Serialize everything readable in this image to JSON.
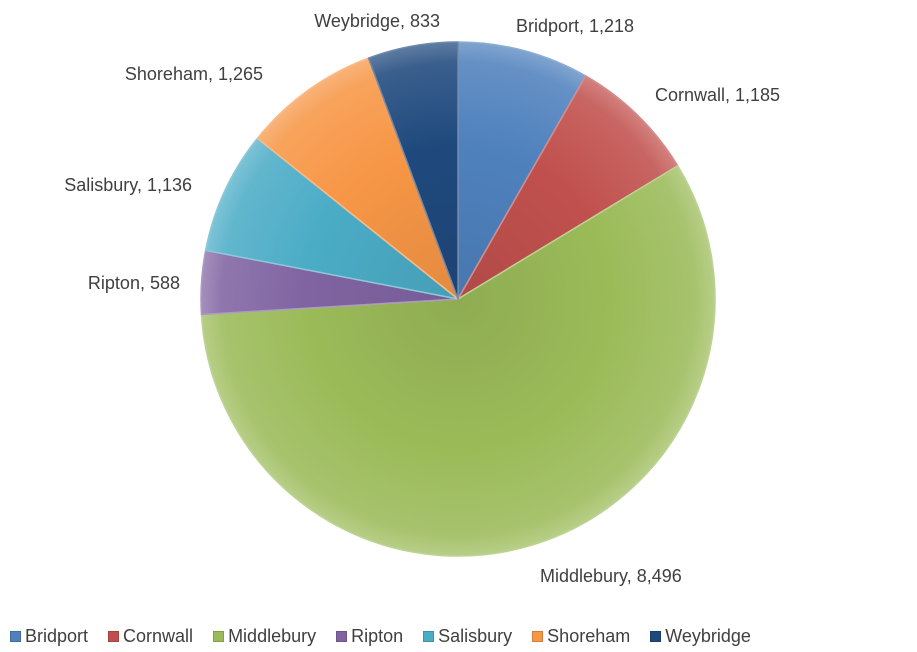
{
  "chart_data": {
    "type": "pie",
    "title": "",
    "categories": [
      "Bridport",
      "Cornwall",
      "Middlebury",
      "Ripton",
      "Salisbury",
      "Shoreham",
      "Weybridge"
    ],
    "values": [
      1218,
      1185,
      8496,
      588,
      1136,
      1265,
      833
    ],
    "value_labels": [
      "1,218",
      "1,185",
      "8,496",
      "588",
      "1,136",
      "1,265",
      "833"
    ],
    "colors": [
      "#4F81BD",
      "#C0504D",
      "#9BBB59",
      "#8064A2",
      "#4BACC6",
      "#F79646",
      "#1F497D"
    ],
    "data_labels": [
      "Bridport, 1,218",
      "Cornwall, 1,185",
      "Middlebury, 8,496",
      "Ripton, 588",
      "Salisbury, 1,136",
      "Shoreham, 1,265",
      "Weybridge, 833"
    ],
    "legend": {
      "placement": "bottom",
      "entries": [
        "Bridport",
        "Cornwall",
        "Middlebury",
        "Ripton",
        "Salisbury",
        "Shoreham",
        "Weybridge"
      ]
    },
    "start_angle": "12 o'clock",
    "direction": "clockwise"
  }
}
